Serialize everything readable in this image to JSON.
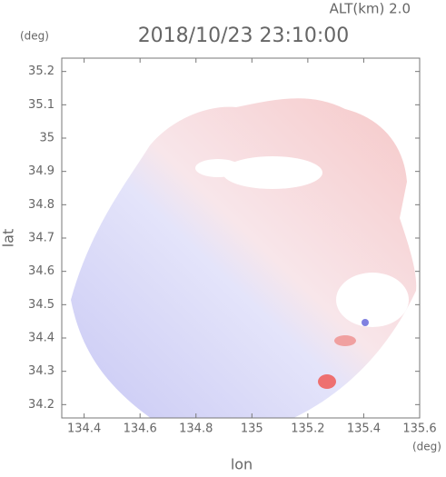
{
  "chart_data": {
    "type": "radar-field",
    "altitude_label": "ALT(km) 2.0",
    "title": "2018/10/23 23:10:00",
    "x_unit": "(deg)",
    "y_unit": "(deg)",
    "x_label": "lon",
    "y_label": "lat",
    "xlim": [
      134.32,
      135.6
    ],
    "ylim": [
      34.16,
      35.24
    ],
    "xticks": [
      134.4,
      134.6,
      134.8,
      135.0,
      135.2,
      135.4,
      135.6
    ],
    "yticks": [
      34.2,
      34.3,
      34.4,
      34.5,
      34.6,
      34.7,
      34.8,
      34.9,
      35.0,
      35.1,
      35.2
    ]
  }
}
